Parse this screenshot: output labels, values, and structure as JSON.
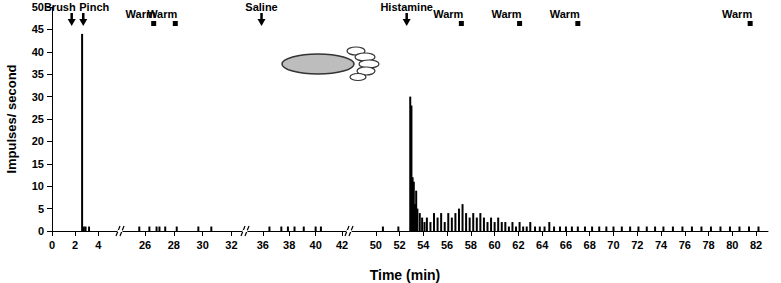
{
  "chart_data": {
    "type": "bar",
    "ylabel": "Impulses/ second",
    "xlabel": "Time (min)",
    "color": "#000000",
    "grid": false,
    "ylim": [
      0,
      50
    ],
    "yticks": [
      0,
      5,
      10,
      15,
      20,
      25,
      30,
      35,
      40,
      45,
      50
    ],
    "segments": [
      {
        "xlim": [
          0,
          5.7
        ],
        "xticks": [
          0,
          2,
          4
        ],
        "x": [
          2.6,
          2.75,
          2.9,
          3.2
        ],
        "values": [
          44,
          1,
          1,
          1
        ]
      },
      {
        "xlim": [
          24.4,
          32.8
        ],
        "xticks": [
          26,
          28,
          30,
          32
        ],
        "x": [
          25.6,
          26.3,
          26.8,
          27.0,
          27.4,
          28.2,
          29.7,
          30.6
        ],
        "values": [
          1,
          1,
          1,
          1,
          1,
          1,
          1,
          1
        ]
      },
      {
        "xlim": [
          34.8,
          42.3
        ],
        "xticks": [
          36,
          38,
          40,
          42
        ],
        "x": [
          36.5,
          37.4,
          37.9,
          38.4,
          39.1,
          40.0,
          40.4
        ],
        "values": [
          1,
          1,
          1,
          1,
          1,
          1,
          1
        ]
      },
      {
        "xlim": [
          48,
          83
        ],
        "xticks": [
          50,
          52,
          54,
          56,
          58,
          60,
          62,
          64,
          66,
          68,
          70,
          72,
          74,
          76,
          78,
          80,
          82
        ],
        "x": [
          50.6,
          51.9,
          52.9,
          53.0,
          53.1,
          53.2,
          53.3,
          53.4,
          53.5,
          53.7,
          53.9,
          54.1,
          54.3,
          54.6,
          54.9,
          55.2,
          55.5,
          55.8,
          56.1,
          56.4,
          56.7,
          57.0,
          57.3,
          57.6,
          57.9,
          58.2,
          58.5,
          58.8,
          59.1,
          59.4,
          59.7,
          60.0,
          60.3,
          60.6,
          60.9,
          61.2,
          61.5,
          61.8,
          62.1,
          62.4,
          62.7,
          63.0,
          63.4,
          63.8,
          64.2,
          64.6,
          65.0,
          65.5,
          66.0,
          66.5,
          67.0,
          67.6,
          68.2,
          68.8,
          69.4,
          70.0,
          70.7,
          71.4,
          72.1,
          72.8,
          73.5,
          74.2,
          75.0,
          75.8,
          76.6,
          77.4,
          78.2,
          79.0,
          79.8,
          80.6,
          81.4,
          82.2
        ],
        "values": [
          1,
          1,
          30,
          28,
          12,
          11,
          6,
          9,
          5,
          4,
          3,
          2,
          3,
          2,
          4,
          3,
          4,
          2,
          4,
          3,
          4,
          5,
          6,
          4,
          3,
          4,
          3,
          4,
          3,
          2,
          3,
          2,
          3,
          2,
          2,
          1,
          2,
          1,
          2,
          1,
          1,
          2,
          1,
          1,
          1,
          2,
          1,
          1,
          1,
          1,
          1,
          1,
          1,
          1,
          1,
          1,
          1,
          1,
          1,
          1,
          1,
          1,
          1,
          1,
          1,
          1,
          1,
          1,
          1,
          1,
          1,
          1
        ]
      }
    ],
    "annotations": [
      {
        "text": "Brush",
        "x": 1.7,
        "marker": "arrow"
      },
      {
        "text": "Pinch",
        "x": 2.7,
        "marker": "arrow"
      },
      {
        "text": "Warm",
        "x": 26.6,
        "marker": "square"
      },
      {
        "text": "Warm",
        "x": 28.1,
        "marker": "square"
      },
      {
        "text": "Saline",
        "x": 35.9,
        "marker": "arrow"
      },
      {
        "text": "Histamine",
        "x": 52.6,
        "marker": "arrow"
      },
      {
        "text": "Warm",
        "x": 57.2,
        "marker": "square"
      },
      {
        "text": "Warm",
        "x": 62.1,
        "marker": "square"
      },
      {
        "text": "Warm",
        "x": 67.0,
        "marker": "square"
      },
      {
        "text": "Warm",
        "x": 81.5,
        "marker": "square"
      }
    ]
  }
}
